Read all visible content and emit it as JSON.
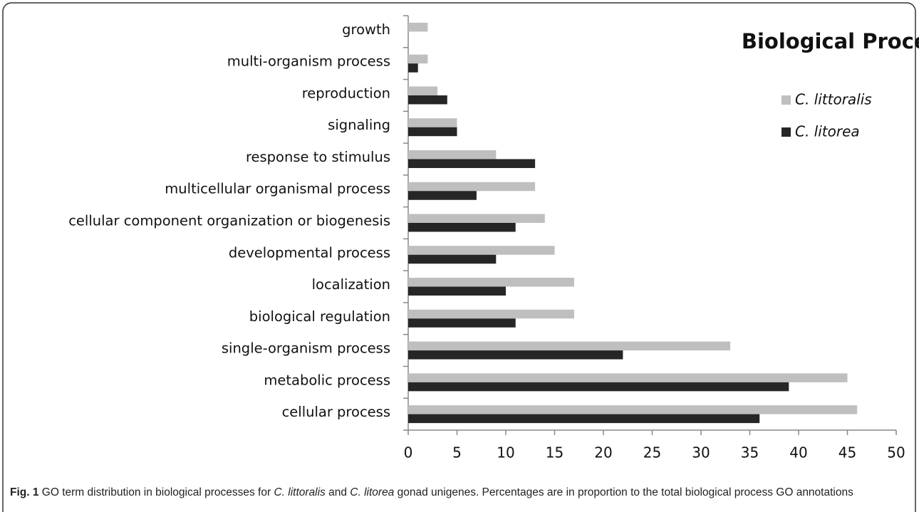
{
  "chart_data": {
    "type": "hbar",
    "title": "Biological Process",
    "categories": [
      "growth",
      "multi-organism process",
      "reproduction",
      "signaling",
      "response to stimulus",
      "multicellular organismal process",
      "cellular component organization or biogenesis",
      "developmental process",
      "localization",
      "biological regulation",
      "single-organism process",
      "metabolic process",
      "cellular process"
    ],
    "series": [
      {
        "name": "C. littoralis",
        "color": "#bfbfbf",
        "values": [
          2,
          2,
          3,
          5,
          9,
          13,
          14,
          15,
          17,
          17,
          33,
          45,
          46
        ]
      },
      {
        "name": "C. litorea",
        "color": "#262626",
        "values": [
          0,
          1,
          4,
          5,
          13,
          7,
          11,
          9,
          10,
          11,
          22,
          39,
          36
        ]
      }
    ],
    "xlim": [
      0,
      50
    ],
    "xticks": [
      0,
      5,
      10,
      15,
      20,
      25,
      30,
      35,
      40,
      45,
      50
    ],
    "grid": false,
    "legend": "top-right"
  },
  "caption": {
    "label": "Fig. 1",
    "parts": [
      "GO term distribution in biological processes for ",
      "C. littoralis",
      " and ",
      "C. litorea",
      " gonad unigenes. Percentages are in proportion to the total biological process GO annotations"
    ]
  }
}
